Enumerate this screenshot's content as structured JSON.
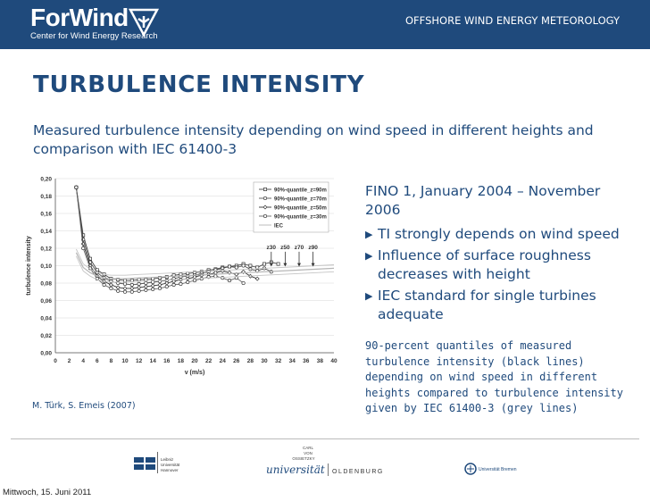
{
  "header": {
    "logo_text": "ForWind",
    "logo_subtitle": "Center for Wind Energy Research",
    "section": "OFFSHORE WIND ENERGY METEOROLOGY",
    "color": "#1f4a7c"
  },
  "slide": {
    "title": "TURBULENCE INTENSITY",
    "subtitle": "Measured turbulence intensity depending on wind speed in different heights and comparison with IEC 61400-3",
    "source": "M. Türk, S. Emeis (2007)",
    "right_heading": "FINO 1, January 2004 – November 2006",
    "bullets": [
      "TI strongly depends on wind speed",
      "Influence of surface roughness decreases with height",
      "IEC standard for single turbines adequate"
    ],
    "caption": "90-percent quantiles of measured turbulence intensity (black lines) depending on wind speed in different heights compared to turbulence intensity given by IEC 61400-3 (grey lines)"
  },
  "footer": {
    "date": "Mittwoch, 15. Juni 2011",
    "logo_hannover": [
      "Leibniz",
      "Universität",
      "Hannover"
    ],
    "logo_oldenburg_top": [
      "CARL",
      "VON",
      "OSSIETZKY"
    ],
    "logo_oldenburg_main": "universität",
    "logo_oldenburg_city": "OLDENBURG",
    "logo_bremen": "Universität Bremen"
  },
  "chart_data": {
    "type": "line",
    "xlabel": "v (m/s)",
    "ylabel": "turbulence intensity",
    "xlim": [
      0,
      40
    ],
    "ylim": [
      0,
      0.2
    ],
    "xticks": [
      0,
      2,
      4,
      6,
      8,
      10,
      12,
      14,
      16,
      18,
      20,
      22,
      24,
      26,
      28,
      30,
      32,
      34,
      36,
      38,
      40
    ],
    "yticks": [
      "0,00",
      "0,02",
      "0,04",
      "0,06",
      "0,08",
      "0,10",
      "0,12",
      "0,14",
      "0,16",
      "0,18",
      "0,20"
    ],
    "legend_position": "top-right",
    "series": [
      {
        "name": "90%-quantile_z=90m",
        "x": [
          3,
          4,
          5,
          6,
          7,
          8,
          9,
          10,
          11,
          12,
          13,
          14,
          15,
          16,
          17,
          18,
          19,
          20,
          21,
          22,
          23,
          24,
          25,
          26,
          27,
          28,
          29,
          30,
          31,
          32
        ],
        "values": [
          0.19,
          0.135,
          0.108,
          0.095,
          0.09,
          0.085,
          0.084,
          0.083,
          0.083,
          0.084,
          0.084,
          0.085,
          0.086,
          0.087,
          0.089,
          0.09,
          0.091,
          0.092,
          0.093,
          0.095,
          0.096,
          0.098,
          0.099,
          0.1,
          0.102,
          0.1,
          0.098,
          0.102,
          0.104,
          0.102
        ]
      },
      {
        "name": "90%-quantile_z=70m",
        "x": [
          3,
          4,
          5,
          6,
          7,
          8,
          9,
          10,
          11,
          12,
          13,
          14,
          15,
          16,
          17,
          18,
          19,
          20,
          21,
          22,
          23,
          24,
          25,
          26,
          27,
          28,
          29,
          30,
          31
        ],
        "values": [
          0.19,
          0.13,
          0.104,
          0.092,
          0.086,
          0.082,
          0.08,
          0.079,
          0.078,
          0.079,
          0.08,
          0.081,
          0.082,
          0.083,
          0.085,
          0.087,
          0.088,
          0.089,
          0.091,
          0.093,
          0.095,
          0.097,
          0.099,
          0.098,
          0.1,
          0.096,
          0.094,
          0.097,
          0.093
        ]
      },
      {
        "name": "90%-quantile_z=50m",
        "x": [
          3,
          4,
          5,
          6,
          7,
          8,
          9,
          10,
          11,
          12,
          13,
          14,
          15,
          16,
          17,
          18,
          19,
          20,
          21,
          22,
          23,
          24,
          25,
          26,
          27,
          28,
          29
        ],
        "values": [
          0.19,
          0.125,
          0.1,
          0.088,
          0.082,
          0.078,
          0.075,
          0.074,
          0.074,
          0.075,
          0.076,
          0.077,
          0.078,
          0.08,
          0.082,
          0.084,
          0.085,
          0.087,
          0.089,
          0.09,
          0.092,
          0.094,
          0.092,
          0.09,
          0.093,
          0.088,
          0.085
        ]
      },
      {
        "name": "90%-quantile_z=30m",
        "x": [
          3,
          4,
          5,
          6,
          7,
          8,
          9,
          10,
          11,
          12,
          13,
          14,
          15,
          16,
          17,
          18,
          19,
          20,
          21,
          22,
          23,
          24,
          25,
          26,
          27
        ],
        "values": [
          0.19,
          0.12,
          0.097,
          0.085,
          0.078,
          0.074,
          0.071,
          0.07,
          0.07,
          0.071,
          0.072,
          0.073,
          0.074,
          0.076,
          0.078,
          0.079,
          0.081,
          0.083,
          0.085,
          0.087,
          0.088,
          0.086,
          0.083,
          0.086,
          0.08
        ]
      },
      {
        "name": "IEC",
        "x": [
          3,
          4,
          5,
          6,
          7,
          8,
          10,
          12,
          15,
          20,
          25,
          30,
          35,
          40
        ],
        "values": [
          0.115,
          0.098,
          0.092,
          0.088,
          0.086,
          0.085,
          0.085,
          0.086,
          0.087,
          0.089,
          0.091,
          0.093,
          0.095,
          0.097
        ]
      }
    ],
    "annotations": [
      {
        "label": "z30",
        "x": 31
      },
      {
        "label": "z50",
        "x": 33
      },
      {
        "label": "z70",
        "x": 35
      },
      {
        "label": "z90",
        "x": 37
      }
    ]
  }
}
